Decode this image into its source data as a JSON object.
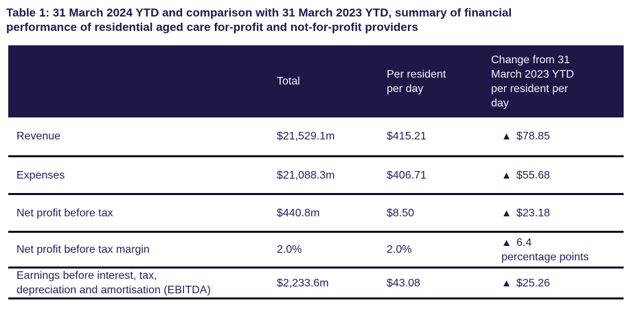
{
  "title": "Table 1: 31 March 2024 YTD and comparison with 31 March 2023 YTD, summary of financial\nperformance of residential aged care for-profit and not-for-profit providers",
  "colors": {
    "header-bg": "#1f1745",
    "header-text-color": "#f5f2fc",
    "body-text-color": "#232060",
    "title-color": "#1d1850",
    "border-color": "#131129",
    "arrow-color": "#1f1745"
  },
  "table": {
    "columns": {
      "label": "",
      "total": "Total",
      "per_resident_per_day": "Per resident\nper day",
      "change": "Change from 31\nMarch 2023 YTD\nper resident per\nday"
    },
    "increase_indicator": "▲",
    "rows": [
      {
        "label": "Revenue",
        "total": "$21,529.1m",
        "per_resident_per_day": "$415.21",
        "change_arrow": "▲",
        "change_direction": "increase",
        "change": "$78.85"
      },
      {
        "label": "Expenses",
        "total": "$21,088.3m",
        "per_resident_per_day": "$406.71",
        "change_arrow": "▲",
        "change_direction": "increase",
        "change": "$55.68"
      },
      {
        "label": "Net profit before tax",
        "total": "$440.8m",
        "per_resident_per_day": "$8.50",
        "change_arrow": "▲",
        "change_direction": "increase",
        "change": "$23.18"
      },
      {
        "label": "Net profit before tax margin",
        "total": "2.0%",
        "per_resident_per_day": "2.0%",
        "change_arrow": "▲",
        "change_direction": "increase",
        "change": "6.4\npercentage points"
      },
      {
        "label": "Earnings before interest, tax,\ndepreciation and amortisation (EBITDA)",
        "total": "$2,233.6m",
        "per_resident_per_day": "$43.08",
        "change_arrow": "▲",
        "change_direction": "increase",
        "change": "$25.26"
      }
    ]
  }
}
